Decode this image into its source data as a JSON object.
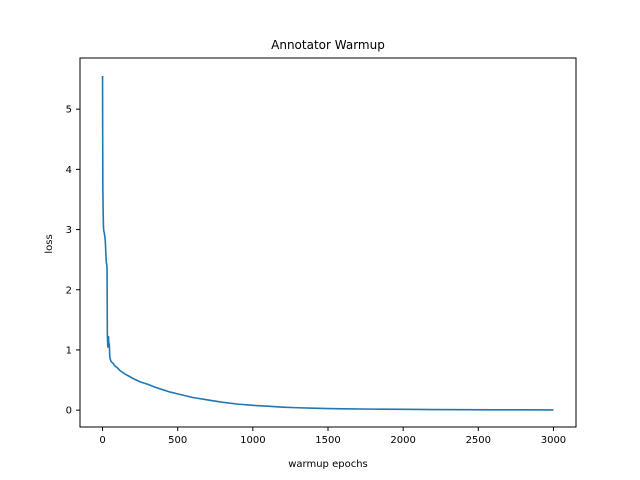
{
  "chart_data": {
    "type": "line",
    "title": "Annotator Warmup",
    "xlabel": "warmup epochs",
    "ylabel": "loss",
    "xlim": [
      -150,
      3150
    ],
    "ylim": [
      -0.28,
      5.85
    ],
    "xticks": [
      0,
      500,
      1000,
      1500,
      2000,
      2500,
      3000
    ],
    "yticks": [
      0,
      1,
      2,
      3,
      4,
      5
    ],
    "grid": false,
    "series": [
      {
        "color": "#1f77b4",
        "x": [
          0,
          1,
          2,
          4,
          6,
          8,
          10,
          12,
          15,
          18,
          20,
          22,
          25,
          28,
          30,
          32,
          35,
          38,
          40,
          42,
          45,
          48,
          50,
          55,
          60,
          70,
          80,
          100,
          120,
          150,
          200,
          250,
          300,
          350,
          400,
          450,
          500,
          600,
          700,
          800,
          900,
          1000,
          1100,
          1200,
          1300,
          1400,
          1500,
          1600,
          1800,
          2000,
          2200,
          2400,
          2600,
          2800,
          3000
        ],
        "y": [
          5.55,
          4.5,
          3.7,
          3.3,
          3.05,
          2.98,
          2.96,
          2.94,
          2.88,
          2.82,
          2.72,
          2.6,
          2.45,
          2.42,
          2.35,
          1.25,
          1.05,
          1.18,
          1.22,
          1.05,
          1.1,
          0.9,
          0.86,
          0.82,
          0.8,
          0.78,
          0.74,
          0.7,
          0.65,
          0.6,
          0.53,
          0.47,
          0.43,
          0.38,
          0.34,
          0.3,
          0.27,
          0.21,
          0.17,
          0.13,
          0.1,
          0.08,
          0.065,
          0.05,
          0.04,
          0.032,
          0.026,
          0.022,
          0.017,
          0.013,
          0.01,
          0.008,
          0.006,
          0.005,
          0.004
        ]
      }
    ]
  }
}
